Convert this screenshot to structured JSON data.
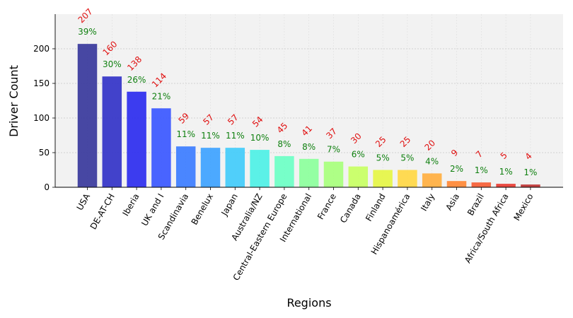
{
  "chart_data": {
    "type": "bar",
    "title": "",
    "xlabel": "Regions",
    "ylabel": "Driver Count",
    "ylim": [
      0,
      250
    ],
    "yticks": [
      0,
      50,
      100,
      150,
      200
    ],
    "grid": true,
    "categories": [
      "USA",
      "DE-AT-CH",
      "Iberia",
      "UK and I",
      "Scandinavia",
      "Benelux",
      "Japan",
      "Australia/NZ",
      "Central-Eastern Europe",
      "International",
      "France",
      "Canada",
      "Finland",
      "Hispanoamérica",
      "Italy",
      "Asia",
      "Brazil",
      "Africa/South Africa",
      "Mexico"
    ],
    "values": [
      207,
      160,
      138,
      114,
      59,
      57,
      57,
      54,
      45,
      41,
      37,
      30,
      25,
      25,
      20,
      9,
      7,
      5,
      4
    ],
    "percent_labels": [
      "39%",
      "30%",
      "26%",
      "21%",
      "11%",
      "11%",
      "11%",
      "10%",
      "8%",
      "8%",
      "7%",
      "6%",
      "5%",
      "5%",
      "4%",
      "2%",
      "1%",
      "1%",
      "1%"
    ],
    "colors": [
      "#3d3d9e",
      "#3838c8",
      "#3232ee",
      "#3f5cff",
      "#4080ff",
      "#42a4ff",
      "#47ccfa",
      "#52f0e6",
      "#70ffc6",
      "#8eff9e",
      "#aaff80",
      "#c8ff66",
      "#e6f54a",
      "#ffd84a",
      "#ffb044",
      "#ff8a3a",
      "#f5623a",
      "#e84038",
      "#c03a3a"
    ]
  }
}
